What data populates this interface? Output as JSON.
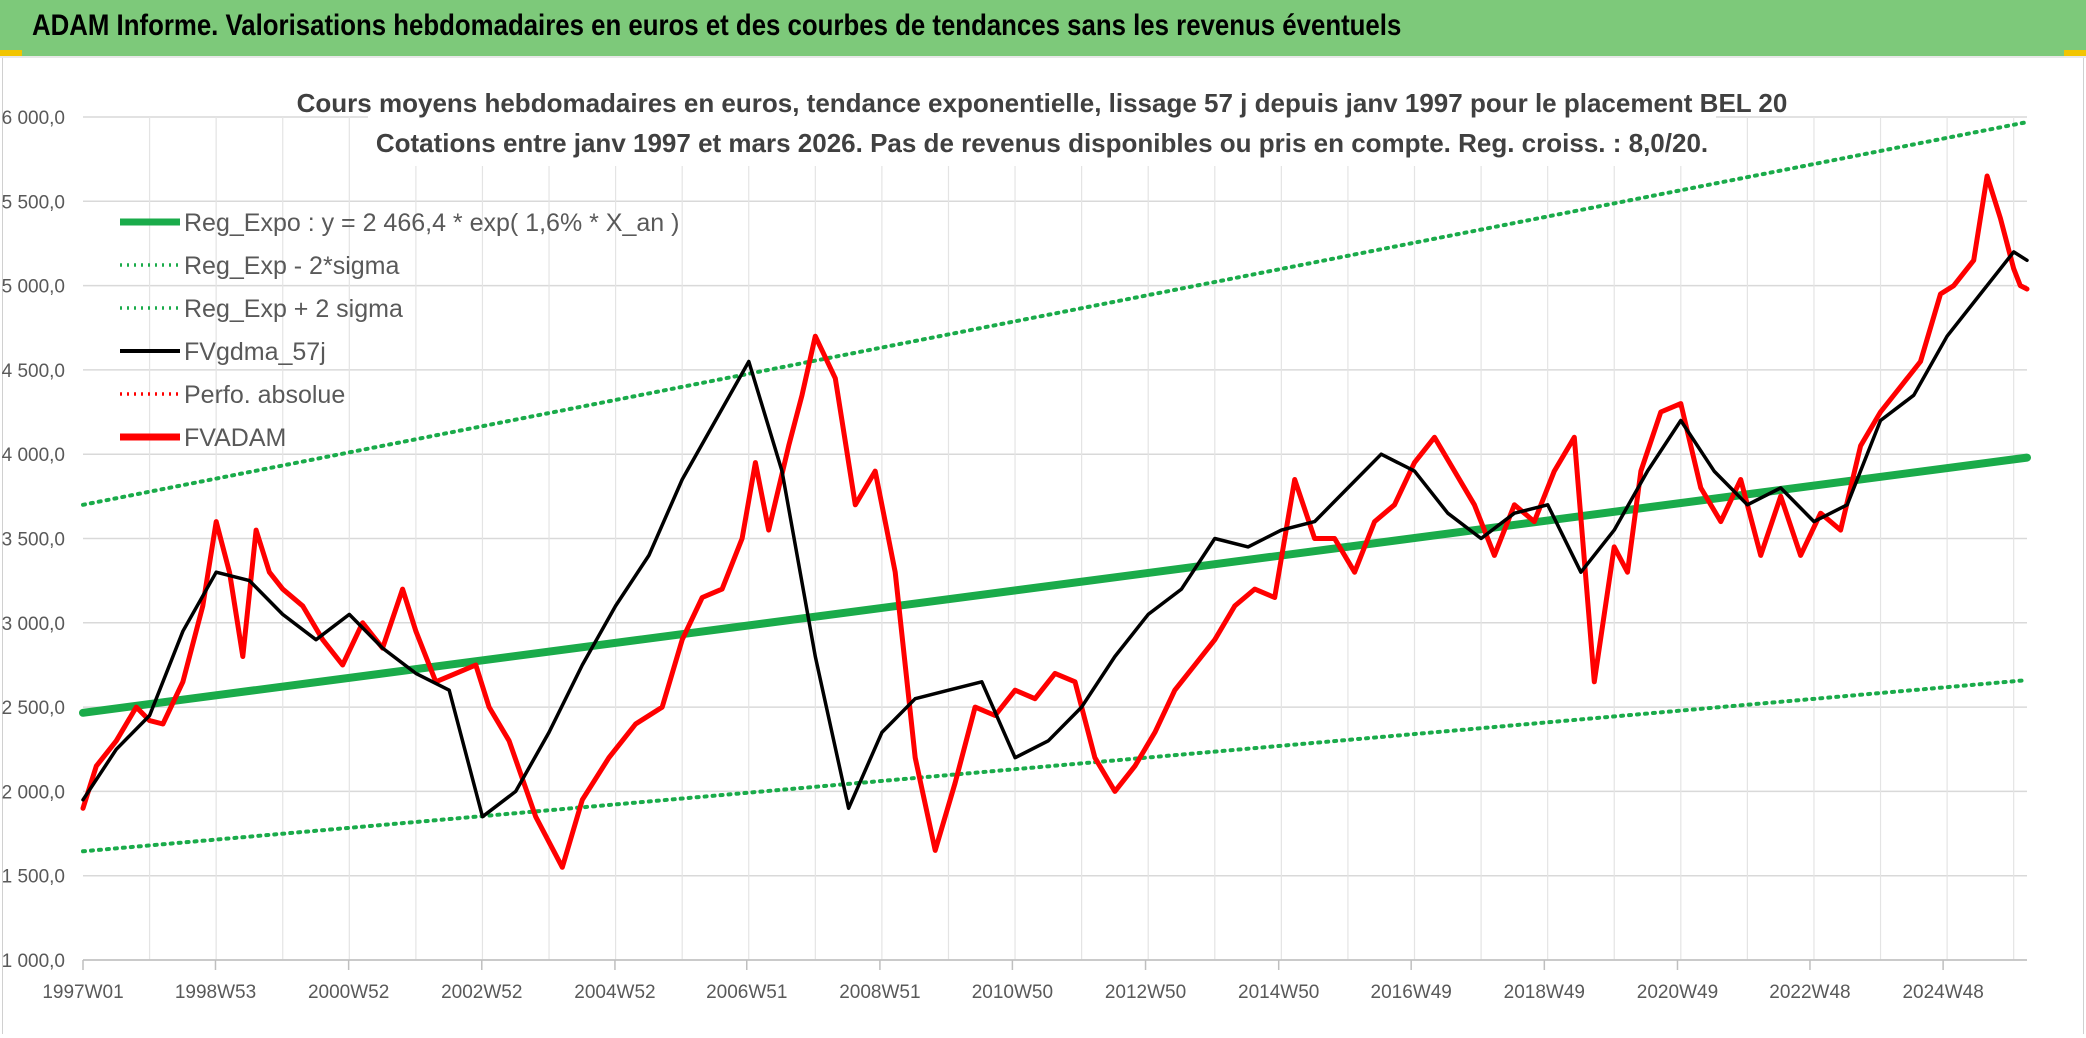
{
  "banner": {
    "title": "ADAM Informe. Valorisations hebdomadaires en euros et des courbes de tendances sans les revenus éventuels"
  },
  "colors": {
    "banner": "#7dc97a",
    "trend": "#1aab4a",
    "fvadam": "#ff0000",
    "fvgdma": "#000000",
    "grid": "#d9d9d9",
    "axis_text": "#595959",
    "title_text": "#404040"
  },
  "chart_data": {
    "type": "line",
    "title": "Cours moyens hebdomadaires en euros, tendance exponentielle, lissage 57 j depuis janv 1997 pour le placement BEL 20",
    "subtitle": "Cotations entre janv 1997 et mars 2026. Pas de revenus disponibles ou pris en compte. Reg. croiss. : 8,0/20.",
    "x_ticks": [
      "1997W01",
      "1998W53",
      "2000W52",
      "2002W52",
      "2004W52",
      "2006W51",
      "2008W51",
      "2010W50",
      "2012W50",
      "2014W50",
      "2016W49",
      "2018W49",
      "2020W49",
      "2022W48",
      "2024W48"
    ],
    "x_range": [
      1997.0,
      2026.2
    ],
    "ylim": [
      1000,
      6000
    ],
    "y_ticks": [
      "1 000,0",
      "1 500,0",
      "2 000,0",
      "2 500,0",
      "3 000,0",
      "3 500,0",
      "4 000,0",
      "4 500,0",
      "5 000,0",
      "5 500,0",
      "6 000,0"
    ],
    "grid": true,
    "legend_position": "top-left",
    "legend": [
      {
        "label": "Reg_Expo : y = 2 466,4 * exp( 1,6% *  X_an )",
        "style": "solid-thick",
        "color": "#1aab4a"
      },
      {
        "label": "Reg_Exp - 2*sigma",
        "style": "dotted",
        "color": "#1aab4a"
      },
      {
        "label": "Reg_Exp + 2 sigma",
        "style": "dotted",
        "color": "#1aab4a"
      },
      {
        "label": "FVgdma_57j",
        "style": "solid",
        "color": "#000000"
      },
      {
        "label": "Perfo. absolue",
        "style": "dotted",
        "color": "#ff0000"
      },
      {
        "label": "FVADAM",
        "style": "solid-thick",
        "color": "#ff0000"
      }
    ],
    "series": [
      {
        "name": "Reg_Expo : y = 2 466,4 * exp( 1,6% *  X_an )",
        "x": [
          1997.0,
          2026.2
        ],
        "y": [
          2466,
          3980
        ]
      },
      {
        "name": "Reg_Exp - 2*sigma",
        "x": [
          1997.0,
          2026.2
        ],
        "y": [
          1645,
          2660
        ]
      },
      {
        "name": "Reg_Exp + 2 sigma",
        "x": [
          1997.0,
          2026.2
        ],
        "y": [
          3700,
          5970
        ]
      },
      {
        "name": "FVADAM",
        "x": [
          1997.0,
          1997.2,
          1997.5,
          1997.8,
          1998.0,
          1998.2,
          1998.5,
          1998.8,
          1999.0,
          1999.2,
          1999.4,
          1999.6,
          1999.8,
          2000.0,
          2000.3,
          2000.6,
          2000.9,
          2001.2,
          2001.5,
          2001.8,
          2002.0,
          2002.3,
          2002.6,
          2002.9,
          2003.1,
          2003.4,
          2003.8,
          2004.2,
          2004.5,
          2004.9,
          2005.3,
          2005.7,
          2006.0,
          2006.3,
          2006.6,
          2006.9,
          2007.1,
          2007.3,
          2007.6,
          2007.8,
          2008.0,
          2008.3,
          2008.6,
          2008.9,
          2009.2,
          2009.5,
          2009.8,
          2010.1,
          2010.4,
          2010.7,
          2011.0,
          2011.3,
          2011.6,
          2011.9,
          2012.2,
          2012.5,
          2012.8,
          2013.1,
          2013.4,
          2013.7,
          2014.0,
          2014.3,
          2014.6,
          2014.9,
          2015.2,
          2015.5,
          2015.8,
          2016.1,
          2016.4,
          2016.7,
          2017.0,
          2017.3,
          2017.6,
          2017.9,
          2018.2,
          2018.5,
          2018.8,
          2019.1,
          2019.4,
          2019.7,
          2020.0,
          2020.2,
          2020.4,
          2020.7,
          2021.0,
          2021.3,
          2021.6,
          2021.9,
          2022.2,
          2022.5,
          2022.8,
          2023.1,
          2023.4,
          2023.7,
          2024.0,
          2024.3,
          2024.6,
          2024.9,
          2025.1,
          2025.4,
          2025.6,
          2025.8,
          2026.0,
          2026.1,
          2026.2
        ],
        "y": [
          1900,
          2150,
          2300,
          2500,
          2420,
          2400,
          2650,
          3100,
          3600,
          3300,
          2800,
          3550,
          3300,
          3200,
          3100,
          2900,
          2750,
          3000,
          2850,
          3200,
          2950,
          2650,
          2700,
          2750,
          2500,
          2300,
          1850,
          1550,
          1950,
          2200,
          2400,
          2500,
          2900,
          3150,
          3200,
          3500,
          3950,
          3550,
          4050,
          4350,
          4700,
          4450,
          3700,
          3900,
          3300,
          2200,
          1650,
          2050,
          2500,
          2450,
          2600,
          2550,
          2700,
          2650,
          2200,
          2000,
          2150,
          2350,
          2600,
          2750,
          2900,
          3100,
          3200,
          3150,
          3850,
          3500,
          3500,
          3300,
          3600,
          3700,
          3950,
          4100,
          3900,
          3700,
          3400,
          3700,
          3600,
          3900,
          4100,
          2650,
          3450,
          3300,
          3900,
          4250,
          4300,
          3800,
          3600,
          3850,
          3400,
          3750,
          3400,
          3650,
          3550,
          4050,
          4250,
          4400,
          4550,
          4950,
          5000,
          5150,
          5650,
          5400,
          5100,
          5000,
          4980
        ]
      },
      {
        "name": "FVgdma_57j",
        "x": [
          1997.0,
          1997.5,
          1998.0,
          1998.5,
          1999.0,
          1999.5,
          2000.0,
          2000.5,
          2001.0,
          2001.5,
          2002.0,
          2002.5,
          2003.0,
          2003.5,
          2004.0,
          2004.5,
          2005.0,
          2005.5,
          2006.0,
          2006.5,
          2007.0,
          2007.5,
          2008.0,
          2008.5,
          2009.0,
          2009.5,
          2010.0,
          2010.5,
          2011.0,
          2011.5,
          2012.0,
          2012.5,
          2013.0,
          2013.5,
          2014.0,
          2014.5,
          2015.0,
          2015.5,
          2016.0,
          2016.5,
          2017.0,
          2017.5,
          2018.0,
          2018.5,
          2019.0,
          2019.5,
          2020.0,
          2020.5,
          2021.0,
          2021.5,
          2022.0,
          2022.5,
          2023.0,
          2023.5,
          2024.0,
          2024.5,
          2025.0,
          2025.5,
          2026.0,
          2026.2
        ],
        "y": [
          1950,
          2250,
          2450,
          2950,
          3300,
          3250,
          3050,
          2900,
          3050,
          2850,
          2700,
          2600,
          1850,
          2000,
          2350,
          2750,
          3100,
          3400,
          3850,
          4200,
          4550,
          3900,
          2800,
          1900,
          2350,
          2550,
          2600,
          2650,
          2200,
          2300,
          2500,
          2800,
          3050,
          3200,
          3500,
          3450,
          3550,
          3600,
          3800,
          4000,
          3900,
          3650,
          3500,
          3650,
          3700,
          3300,
          3550,
          3900,
          4200,
          3900,
          3700,
          3800,
          3600,
          3700,
          4200,
          4350,
          4700,
          4950,
          5200,
          5150
        ]
      }
    ]
  }
}
